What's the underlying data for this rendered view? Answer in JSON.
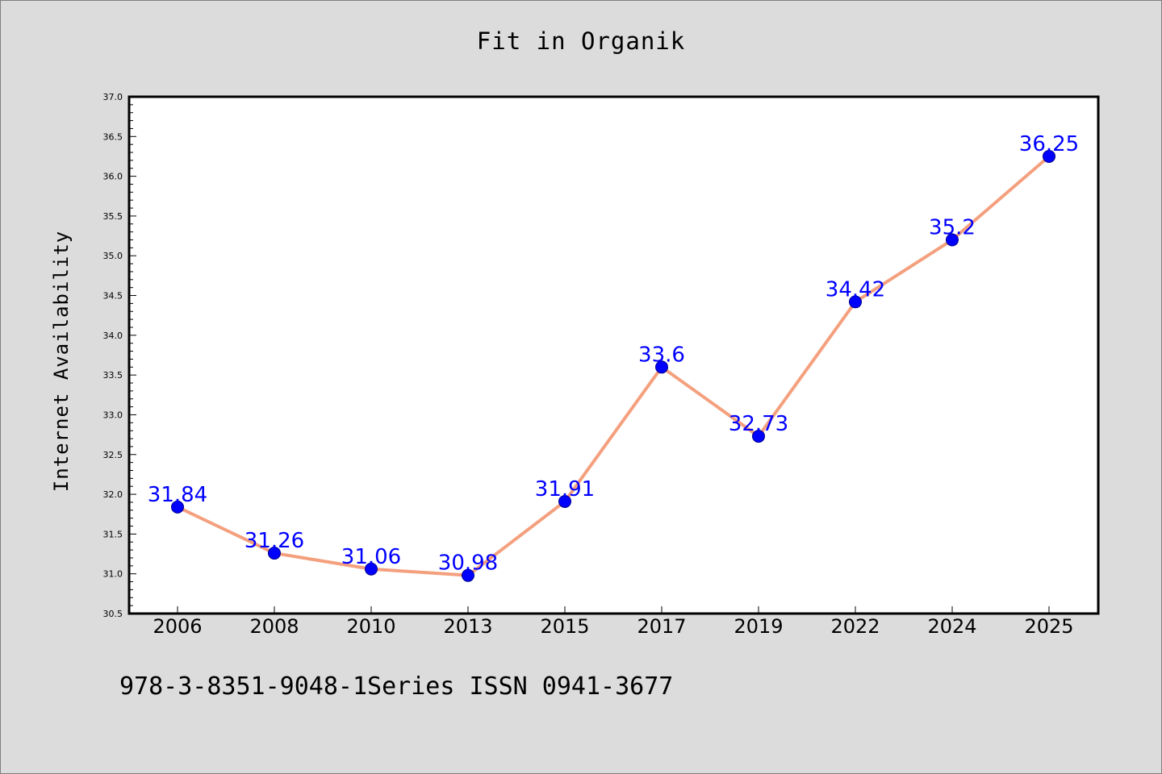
{
  "colors": {
    "background": "#dcdcdc",
    "plot_background": "#ffffff",
    "line": "#f4a07e",
    "marker": "#0000ff",
    "data_label": "#0000ff"
  },
  "chart_data": {
    "type": "line",
    "title": "Fit in Organik",
    "xlabel": "",
    "ylabel": "Internet Availability",
    "categories": [
      "2006",
      "2008",
      "2010",
      "2013",
      "2015",
      "2017",
      "2019",
      "2022",
      "2024",
      "2025"
    ],
    "series": [
      {
        "values": [
          31.84,
          31.26,
          31.06,
          30.98,
          31.91,
          33.6,
          32.73,
          34.42,
          35.2,
          36.25
        ],
        "data_labels": [
          "31.84",
          "31.26",
          "31.06",
          "30.98",
          "31.91",
          "33.6",
          "32.73",
          "34.42",
          "35.2",
          "36.25"
        ]
      }
    ],
    "ylim": [
      30.5,
      37.0
    ],
    "y_ticks": [
      "30.5",
      "31.0",
      "31.5",
      "32.0",
      "32.5",
      "33.0",
      "33.5",
      "34.0",
      "34.5",
      "35.0",
      "35.5",
      "36.0",
      "36.5",
      "37.0"
    ],
    "grid": false,
    "legend": "none"
  },
  "footer": {
    "note": "978-3-8351-9048-1Series ISSN 0941-3677"
  }
}
